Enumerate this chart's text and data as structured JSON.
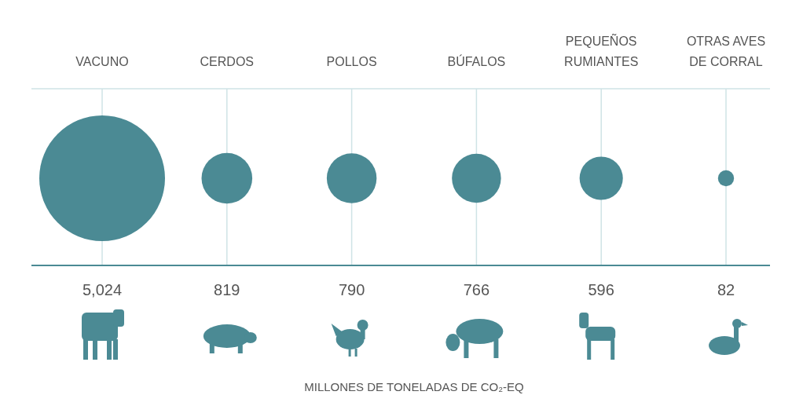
{
  "chart_data": {
    "type": "other",
    "categories": [
      "VACUNO",
      "CERDOS",
      "POLLOS",
      "BÚFALOS",
      "PEQUEÑOS RUMIANTES",
      "OTRAS AVES DE CORRAL"
    ],
    "values": [
      5024,
      819,
      790,
      766,
      596,
      82
    ],
    "value_labels": [
      "5,024",
      "819",
      "790",
      "766",
      "596",
      "82"
    ],
    "color": "#4b8a94",
    "xlabel": "MILLONES DE TONELADAS DE CO₂-EQ"
  }
}
